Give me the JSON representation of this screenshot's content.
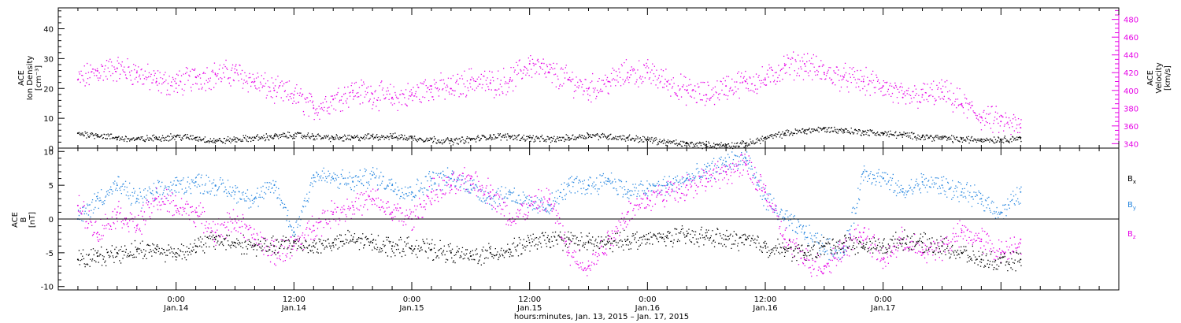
{
  "chart_data": [
    {
      "type": "scatter",
      "panel": "top",
      "ylabel_left": [
        "ACE",
        "Ion Density",
        "[cm⁻³]"
      ],
      "ylabel_right": [
        "ACE",
        "Velocity",
        "[km/s]"
      ],
      "ylim_left": [
        0,
        47
      ],
      "ylim_right": [
        335,
        493
      ],
      "yticks_left": [
        "0",
        "10",
        "20",
        "30",
        "40"
      ],
      "yticks_right": [
        "340",
        "360",
        "380",
        "400",
        "420",
        "440",
        "460",
        "480"
      ],
      "series": [
        {
          "name": "Ion Density",
          "axis": "left",
          "color": "#000000",
          "x": [
            -10,
            -8,
            -6,
            -4,
            -2,
            0,
            2,
            4,
            6,
            8,
            10,
            12,
            14,
            16,
            18,
            20,
            22,
            24,
            26,
            28,
            30,
            32,
            34,
            36,
            38,
            40,
            42,
            44,
            46,
            48,
            50,
            52,
            54,
            56,
            58,
            60,
            62,
            64,
            66,
            68,
            70,
            72,
            74,
            76,
            78,
            80,
            82,
            84,
            86
          ],
          "y": [
            5,
            4.5,
            3.5,
            3,
            3.5,
            4,
            3.5,
            2.5,
            3,
            3.5,
            4,
            4.5,
            4,
            3.5,
            3.5,
            4,
            4,
            3.5,
            3,
            2.5,
            3,
            4,
            4,
            3.5,
            3,
            3.5,
            4.5,
            4,
            3.5,
            3,
            2,
            1.5,
            1.2,
            1,
            1.5,
            3.5,
            5,
            6,
            6.5,
            6,
            5.5,
            5,
            4.5,
            4,
            3.5,
            3,
            3,
            3,
            3.5
          ]
        },
        {
          "name": "Velocity",
          "axis": "right",
          "color": "#e600e6",
          "x": [
            -10,
            -8,
            -6,
            -4,
            -2,
            0,
            2,
            4,
            6,
            8,
            10,
            12,
            14,
            16,
            18,
            20,
            22,
            24,
            26,
            28,
            30,
            32,
            34,
            36,
            38,
            40,
            42,
            44,
            46,
            48,
            50,
            52,
            54,
            56,
            58,
            60,
            62,
            64,
            66,
            68,
            70,
            72,
            74,
            76,
            78,
            80,
            82,
            84,
            86
          ],
          "y": [
            412,
            422,
            425,
            420,
            410,
            408,
            415,
            418,
            420,
            410,
            400,
            395,
            380,
            390,
            400,
            396,
            392,
            395,
            405,
            402,
            412,
            408,
            412,
            430,
            420,
            412,
            402,
            410,
            420,
            420,
            410,
            400,
            395,
            405,
            410,
            412,
            428,
            430,
            420,
            415,
            410,
            405,
            392,
            395,
            398,
            385,
            370,
            365,
            358
          ]
        }
      ]
    },
    {
      "type": "scatter",
      "panel": "bottom",
      "ylabel_left": [
        "ACE",
        "B",
        "[nT]"
      ],
      "ylim": [
        -10.5,
        10.5
      ],
      "yticks_left": [
        "-10",
        "-5",
        "0",
        "5",
        "10"
      ],
      "legend_labels": [
        {
          "text": "B",
          "sub": "x",
          "color": "#000000"
        },
        {
          "text": "B",
          "sub": "y",
          "color": "#2a88e0"
        },
        {
          "text": "B",
          "sub": "z",
          "color": "#e600e6"
        }
      ],
      "series": [
        {
          "name": "Bx",
          "color": "#000000",
          "x": [
            -10,
            -8,
            -6,
            -4,
            -2,
            0,
            2,
            4,
            6,
            8,
            10,
            12,
            14,
            16,
            18,
            20,
            22,
            24,
            26,
            28,
            30,
            32,
            34,
            36,
            38,
            40,
            42,
            44,
            46,
            48,
            50,
            52,
            54,
            56,
            58,
            60,
            62,
            64,
            66,
            68,
            70,
            72,
            74,
            76,
            78,
            80,
            82,
            84,
            86
          ],
          "y": [
            -6,
            -5.5,
            -5,
            -4.5,
            -4.5,
            -5,
            -4,
            -3,
            -3.5,
            -4,
            -4,
            -3.5,
            -4,
            -3.5,
            -3,
            -3.5,
            -4,
            -4,
            -4.5,
            -5,
            -5.5,
            -5,
            -4.5,
            -3.5,
            -3,
            -3,
            -3.5,
            -3.5,
            -3,
            -3,
            -2.5,
            -2.5,
            -2.5,
            -3,
            -3,
            -4,
            -4.5,
            -5,
            -4,
            -3.5,
            -4,
            -4,
            -3,
            -3.5,
            -4,
            -5,
            -6,
            -6.5,
            -6
          ]
        },
        {
          "name": "By",
          "color": "#2a88e0",
          "x": [
            -10,
            -8,
            -6,
            -4,
            -2,
            0,
            2,
            4,
            6,
            8,
            10,
            12,
            14,
            16,
            18,
            20,
            22,
            24,
            26,
            28,
            30,
            32,
            34,
            36,
            38,
            40,
            42,
            44,
            46,
            48,
            50,
            52,
            54,
            56,
            58,
            60,
            62,
            64,
            66,
            68,
            70,
            72,
            74,
            76,
            78,
            80,
            82,
            84,
            86
          ],
          "y": [
            0,
            3,
            5,
            3,
            4,
            5,
            5.5,
            5,
            4,
            3,
            5,
            -2,
            6.5,
            6,
            5.5,
            6.5,
            5,
            4,
            6,
            6,
            5,
            3,
            4,
            2,
            2,
            5,
            5,
            6,
            4,
            4.5,
            5,
            6,
            7,
            8.5,
            9,
            3,
            0,
            -2,
            -4,
            -5,
            7,
            6,
            4,
            5.5,
            5,
            4,
            3,
            1,
            4
          ]
        },
        {
          "name": "Bz",
          "color": "#e600e6",
          "x": [
            -10,
            -8,
            -6,
            -4,
            -2,
            0,
            2,
            4,
            6,
            8,
            10,
            12,
            14,
            16,
            18,
            20,
            22,
            24,
            26,
            28,
            30,
            32,
            34,
            36,
            38,
            40,
            42,
            44,
            46,
            48,
            50,
            52,
            54,
            56,
            58,
            60,
            62,
            64,
            66,
            68,
            70,
            72,
            74,
            76,
            78,
            80,
            82,
            84,
            86
          ],
          "y": [
            2,
            -2,
            1,
            -1,
            3,
            2,
            1,
            -2,
            0,
            -3,
            -5,
            -4,
            -1,
            1,
            2,
            3,
            1,
            0,
            4,
            5,
            6,
            4,
            0,
            2,
            3,
            -5,
            -7,
            -3,
            1,
            3,
            4,
            5,
            6,
            7,
            8,
            4,
            -3,
            -6,
            -7,
            -4,
            -2,
            -6,
            -3,
            -5,
            -4,
            -2,
            -3,
            -5,
            -3
          ]
        }
      ]
    }
  ],
  "time_axis": {
    "xlim_hours": [
      -12,
      96
    ],
    "ticks": [
      {
        "hour": 0,
        "time": "0:00",
        "date": "Jan.14"
      },
      {
        "hour": 12,
        "time": "12:00",
        "date": "Jan.14"
      },
      {
        "hour": 24,
        "time": "0:00",
        "date": "Jan.15"
      },
      {
        "hour": 36,
        "time": "12:00",
        "date": "Jan.15"
      },
      {
        "hour": 48,
        "time": "0:00",
        "date": "Jan.16"
      },
      {
        "hour": 60,
        "time": "12:00",
        "date": "Jan.16"
      },
      {
        "hour": 72,
        "time": "0:00",
        "date": "Jan.17"
      }
    ],
    "xlabel": "hours:minutes, Jan. 13, 2015 – Jan. 17, 2015"
  }
}
